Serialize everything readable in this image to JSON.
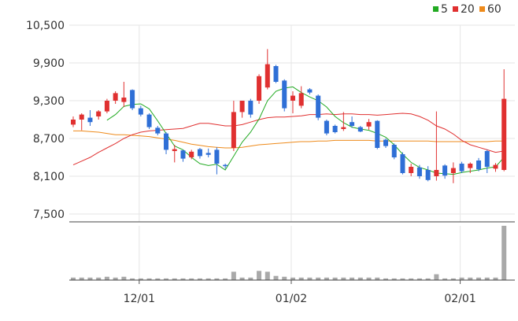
{
  "chart_data": {
    "type": "candlestick",
    "legend": [
      {
        "label": "5",
        "color": "#22aa22"
      },
      {
        "label": "20",
        "color": "#e03030"
      },
      {
        "label": "60",
        "color": "#ee8a1a"
      }
    ],
    "y_ticks": [
      "10,500",
      "9,900",
      "9,300",
      "8,700",
      "8,100",
      "7,500"
    ],
    "y_tick_values": [
      10500,
      9900,
      9300,
      8700,
      8100,
      7500
    ],
    "ylim": [
      7500,
      10500
    ],
    "x_ticks": [
      {
        "label": "12/01",
        "index": 8
      },
      {
        "label": "01/02",
        "index": 26
      },
      {
        "label": "02/01",
        "index": 46
      }
    ],
    "colors": {
      "up": "#e03030",
      "down": "#2f6fd6",
      "volume": "#a9a9a9",
      "grid": "#e6e6e6"
    },
    "candles": [
      [
        8920,
        9050,
        8880,
        9000
      ],
      [
        9000,
        9100,
        8830,
        9080
      ],
      [
        9030,
        9150,
        8900,
        8960
      ],
      [
        9050,
        9150,
        9000,
        9130
      ],
      [
        9130,
        9330,
        9100,
        9300
      ],
      [
        9300,
        9450,
        9250,
        9420
      ],
      [
        9280,
        9600,
        9200,
        9350
      ],
      [
        9470,
        9480,
        9150,
        9180
      ],
      [
        9180,
        9220,
        9050,
        9080
      ],
      [
        9080,
        9100,
        8850,
        8880
      ],
      [
        8870,
        8900,
        8750,
        8780
      ],
      [
        8780,
        8800,
        8450,
        8520
      ],
      [
        8500,
        8600,
        8320,
        8530
      ],
      [
        8510,
        8520,
        8330,
        8380
      ],
      [
        8400,
        8520,
        8370,
        8490
      ],
      [
        8530,
        8550,
        8380,
        8420
      ],
      [
        8470,
        8540,
        8400,
        8440
      ],
      [
        8520,
        8560,
        8130,
        8300
      ],
      [
        8280,
        8300,
        8220,
        8260
      ],
      [
        8550,
        9300,
        8500,
        9120
      ],
      [
        9120,
        9300,
        9030,
        9300
      ],
      [
        9300,
        9330,
        9030,
        9080
      ],
      [
        9300,
        9720,
        9250,
        9690
      ],
      [
        9510,
        10120,
        9480,
        9880
      ],
      [
        9850,
        9870,
        9580,
        9600
      ],
      [
        9620,
        9640,
        9130,
        9180
      ],
      [
        9300,
        9450,
        9100,
        9380
      ],
      [
        9220,
        9530,
        9180,
        9420
      ],
      [
        9480,
        9500,
        9400,
        9430
      ],
      [
        9380,
        9400,
        8990,
        9030
      ],
      [
        8980,
        9000,
        8750,
        8780
      ],
      [
        8900,
        8920,
        8780,
        8800
      ],
      [
        8850,
        9120,
        8820,
        8880
      ],
      [
        8960,
        9050,
        8870,
        8900
      ],
      [
        8880,
        8900,
        8800,
        8810
      ],
      [
        8890,
        9010,
        8840,
        8960
      ],
      [
        8980,
        8990,
        8530,
        8550
      ],
      [
        8680,
        8700,
        8550,
        8580
      ],
      [
        8600,
        8620,
        8370,
        8400
      ],
      [
        8450,
        8480,
        8130,
        8150
      ],
      [
        8150,
        8300,
        8100,
        8250
      ],
      [
        8240,
        8280,
        8060,
        8100
      ],
      [
        8200,
        8260,
        8020,
        8040
      ],
      [
        8100,
        9130,
        8030,
        8200
      ],
      [
        8270,
        8290,
        8060,
        8110
      ],
      [
        8150,
        8320,
        7990,
        8230
      ],
      [
        8300,
        8330,
        8150,
        8180
      ],
      [
        8230,
        8320,
        8150,
        8300
      ],
      [
        8350,
        8390,
        8180,
        8210
      ],
      [
        8500,
        8520,
        8150,
        8250
      ],
      [
        8220,
        8310,
        8170,
        8280
      ],
      [
        8200,
        9800,
        8180,
        9330
      ]
    ],
    "ma5": [
      null,
      null,
      null,
      null,
      8990,
      9080,
      9210,
      9240,
      9250,
      9170,
      8980,
      8780,
      8580,
      8520,
      8400,
      8300,
      8270,
      8290,
      8200,
      8420,
      8640,
      8800,
      9010,
      9300,
      9450,
      9500,
      9520,
      9430,
      9360,
      9300,
      9200,
      9050,
      8950,
      8880,
      8850,
      8830,
      8780,
      8720,
      8600,
      8450,
      8320,
      8240,
      8200,
      8150,
      8140,
      8130,
      8160,
      8180,
      8200,
      8230,
      8250,
      8400
    ],
    "ma20": [
      8280,
      8340,
      8400,
      8480,
      8550,
      8620,
      8700,
      8760,
      8800,
      8820,
      8830,
      8840,
      8850,
      8860,
      8900,
      8940,
      8940,
      8920,
      8900,
      8900,
      8920,
      8960,
      9000,
      9030,
      9040,
      9040,
      9050,
      9060,
      9080,
      9080,
      9090,
      9080,
      9090,
      9090,
      9080,
      9080,
      9070,
      9080,
      9090,
      9100,
      9090,
      9050,
      8990,
      8900,
      8850,
      8770,
      8670,
      8600,
      8560,
      8520,
      8480,
      8500
    ],
    "ma60": [
      8820,
      8820,
      8810,
      8800,
      8780,
      8760,
      8760,
      8750,
      8740,
      8730,
      8710,
      8690,
      8670,
      8640,
      8610,
      8590,
      8570,
      8560,
      8550,
      8550,
      8560,
      8580,
      8600,
      8610,
      8620,
      8630,
      8640,
      8650,
      8650,
      8660,
      8660,
      8670,
      8670,
      8670,
      8670,
      8670,
      8660,
      8660,
      8660,
      8660,
      8660,
      8660,
      8660,
      8650,
      8650,
      8650,
      8650,
      8650,
      8650,
      8650,
      8660,
      8660
    ],
    "volume": [
      3,
      3,
      3,
      3,
      4,
      3,
      4,
      2,
      2,
      2,
      2,
      2,
      2,
      2,
      2,
      2,
      2,
      2,
      2,
      10,
      3,
      3,
      11,
      10,
      5,
      4,
      3,
      3,
      3,
      3,
      3,
      3,
      3,
      3,
      3,
      3,
      3,
      2,
      2,
      2,
      2,
      2,
      2,
      7,
      2,
      2,
      3,
      3,
      3,
      3,
      3,
      65
    ],
    "volume_max": 65
  }
}
